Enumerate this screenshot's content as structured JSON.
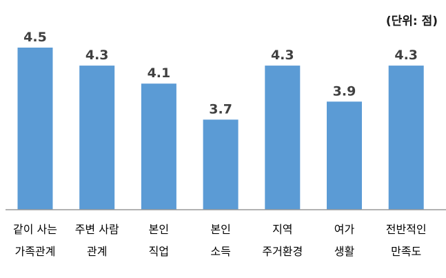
{
  "chart_data": {
    "type": "bar",
    "unit_note": "(단위: 점)",
    "categories": [
      [
        "같이 사는",
        "가족관계"
      ],
      [
        "주변 사람",
        "관계"
      ],
      [
        "본인",
        "직업"
      ],
      [
        "본인",
        "소득"
      ],
      [
        "지역",
        "주거환경"
      ],
      [
        "여가",
        "생활"
      ],
      [
        "전반적인",
        "만족도"
      ]
    ],
    "values": [
      4.5,
      4.3,
      4.1,
      3.7,
      4.3,
      3.9,
      4.3
    ],
    "value_labels": [
      "4.5",
      "4.3",
      "4.1",
      "3.7",
      "4.3",
      "3.9",
      "4.3"
    ],
    "bar_color": "#5b9bd5",
    "axis_color": "#999999",
    "ylim": [
      2.7,
      4.5
    ],
    "grid": false,
    "legend": "none"
  }
}
